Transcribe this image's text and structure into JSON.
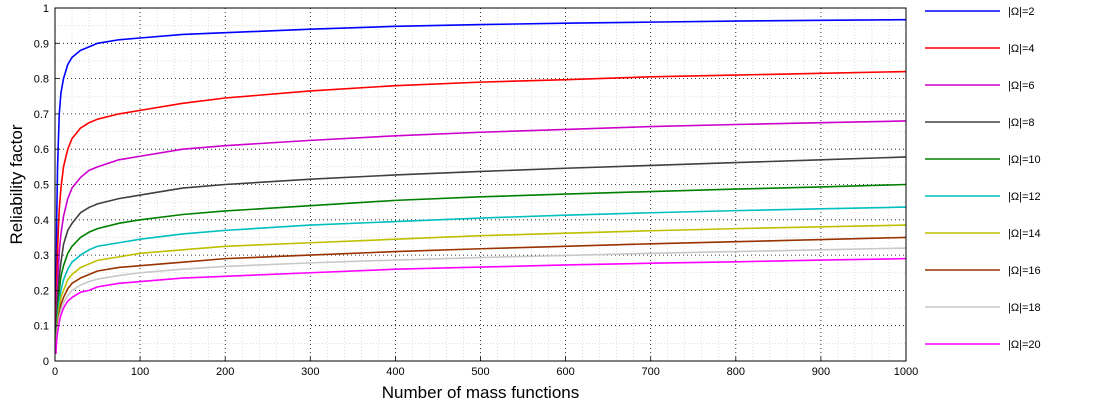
{
  "chart_data": {
    "type": "line",
    "title": "",
    "xlabel": "Number of mass functions",
    "ylabel": "Reliability factor",
    "xlim": [
      0,
      1000
    ],
    "ylim": [
      0,
      1
    ],
    "xticks": [
      0,
      100,
      200,
      300,
      400,
      500,
      600,
      700,
      800,
      900,
      1000
    ],
    "yticks": [
      0,
      0.1,
      0.2,
      0.3,
      0.4,
      0.5,
      0.6,
      0.7,
      0.8,
      0.9,
      1
    ],
    "xtick_labels": [
      "0",
      "100",
      "200",
      "300",
      "400",
      "500",
      "600",
      "700",
      "800",
      "900",
      "1000"
    ],
    "ytick_labels": [
      "0",
      "0.1",
      "0.2",
      "0.3",
      "0.4",
      "0.5",
      "0.6",
      "0.7",
      "0.8",
      "0.9",
      "1"
    ],
    "grid": true,
    "legend_position": "right, outside plot",
    "x": [
      1,
      2,
      3,
      5,
      7,
      10,
      15,
      20,
      30,
      40,
      50,
      75,
      100,
      150,
      200,
      300,
      400,
      500,
      600,
      700,
      800,
      900,
      1000
    ],
    "series": [
      {
        "name": "|Ω|=2",
        "color": "#0000ff",
        "values": [
          0.1,
          0.4,
          0.55,
          0.7,
          0.76,
          0.8,
          0.84,
          0.86,
          0.88,
          0.89,
          0.9,
          0.91,
          0.915,
          0.925,
          0.93,
          0.94,
          0.948,
          0.953,
          0.957,
          0.96,
          0.963,
          0.965,
          0.967
        ]
      },
      {
        "name": "|Ω|=4",
        "color": "#ff0000",
        "values": [
          0.05,
          0.22,
          0.32,
          0.43,
          0.49,
          0.55,
          0.6,
          0.63,
          0.66,
          0.675,
          0.685,
          0.7,
          0.71,
          0.73,
          0.745,
          0.765,
          0.78,
          0.79,
          0.797,
          0.805,
          0.81,
          0.815,
          0.82
        ]
      },
      {
        "name": "|Ω|=6",
        "color": "#cc00cc",
        "values": [
          0.04,
          0.15,
          0.22,
          0.31,
          0.36,
          0.41,
          0.46,
          0.49,
          0.52,
          0.54,
          0.55,
          0.57,
          0.58,
          0.6,
          0.61,
          0.625,
          0.638,
          0.648,
          0.656,
          0.664,
          0.67,
          0.675,
          0.68
        ]
      },
      {
        "name": "|Ω|=8",
        "color": "#404040",
        "values": [
          0.03,
          0.12,
          0.17,
          0.24,
          0.28,
          0.33,
          0.37,
          0.39,
          0.42,
          0.435,
          0.445,
          0.46,
          0.47,
          0.49,
          0.5,
          0.515,
          0.527,
          0.537,
          0.546,
          0.554,
          0.562,
          0.57,
          0.578
        ]
      },
      {
        "name": "|Ω|=10",
        "color": "#008000",
        "values": [
          0.03,
          0.1,
          0.14,
          0.2,
          0.24,
          0.27,
          0.305,
          0.325,
          0.35,
          0.365,
          0.375,
          0.39,
          0.4,
          0.415,
          0.425,
          0.44,
          0.455,
          0.465,
          0.473,
          0.48,
          0.487,
          0.493,
          0.5
        ]
      },
      {
        "name": "|Ω|=12",
        "color": "#00bfbf",
        "values": [
          0.03,
          0.09,
          0.12,
          0.17,
          0.2,
          0.23,
          0.26,
          0.28,
          0.3,
          0.315,
          0.325,
          0.335,
          0.345,
          0.36,
          0.37,
          0.385,
          0.395,
          0.405,
          0.413,
          0.42,
          0.426,
          0.431,
          0.436
        ]
      },
      {
        "name": "|Ω|=14",
        "color": "#bfbf00",
        "values": [
          0.025,
          0.08,
          0.11,
          0.15,
          0.18,
          0.2,
          0.23,
          0.245,
          0.265,
          0.275,
          0.285,
          0.295,
          0.305,
          0.315,
          0.325,
          0.335,
          0.345,
          0.355,
          0.362,
          0.369,
          0.375,
          0.38,
          0.385
        ]
      },
      {
        "name": "|Ω|=16",
        "color": "#993300",
        "values": [
          0.025,
          0.07,
          0.1,
          0.135,
          0.16,
          0.18,
          0.205,
          0.22,
          0.235,
          0.245,
          0.255,
          0.265,
          0.27,
          0.28,
          0.29,
          0.3,
          0.31,
          0.318,
          0.325,
          0.332,
          0.338,
          0.344,
          0.35
        ]
      },
      {
        "name": "|Ω|=18",
        "color": "#c8c8c8",
        "values": [
          0.02,
          0.065,
          0.09,
          0.125,
          0.145,
          0.165,
          0.185,
          0.2,
          0.215,
          0.225,
          0.232,
          0.242,
          0.25,
          0.26,
          0.268,
          0.278,
          0.286,
          0.293,
          0.299,
          0.305,
          0.31,
          0.315,
          0.32
        ]
      },
      {
        "name": "|Ω|=20",
        "color": "#ff00ff",
        "values": [
          0.02,
          0.06,
          0.08,
          0.11,
          0.13,
          0.15,
          0.17,
          0.18,
          0.195,
          0.2,
          0.21,
          0.22,
          0.225,
          0.235,
          0.24,
          0.25,
          0.26,
          0.266,
          0.272,
          0.277,
          0.281,
          0.286,
          0.29
        ]
      }
    ]
  }
}
